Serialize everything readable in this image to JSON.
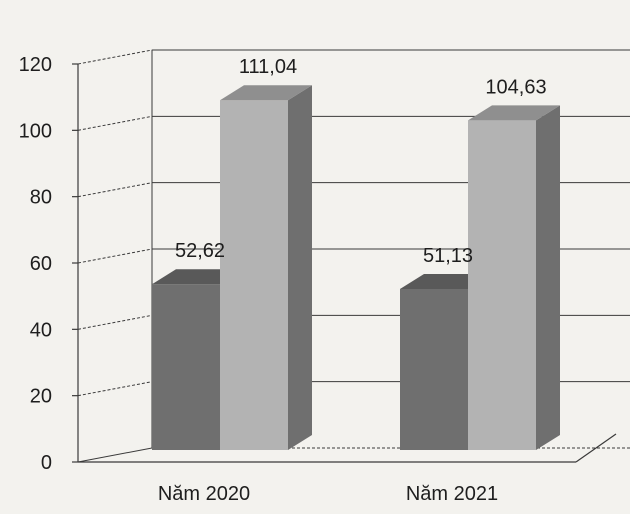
{
  "chart_data": {
    "type": "bar",
    "style": "3d-clustered-column",
    "categories": [
      "Năm 2020",
      "Năm 2021"
    ],
    "series": [
      {
        "values": [
          52.62,
          51.13
        ],
        "labels": [
          "52,62",
          "51,13"
        ]
      },
      {
        "values": [
          111.04,
          104.63
        ],
        "labels": [
          "111,04",
          "104,63"
        ]
      }
    ],
    "ylim": [
      0,
      120
    ],
    "yticks": [
      "0",
      "20",
      "40",
      "60",
      "80",
      "100",
      "120"
    ],
    "grid": true,
    "legend": "none",
    "title": "",
    "xlabel": "",
    "ylabel": ""
  },
  "colors": {
    "series_dark": "#6f6f6f",
    "series_light": "#b3b3b3",
    "grid": "#3a3a3a",
    "background": "#f3f2ee"
  }
}
